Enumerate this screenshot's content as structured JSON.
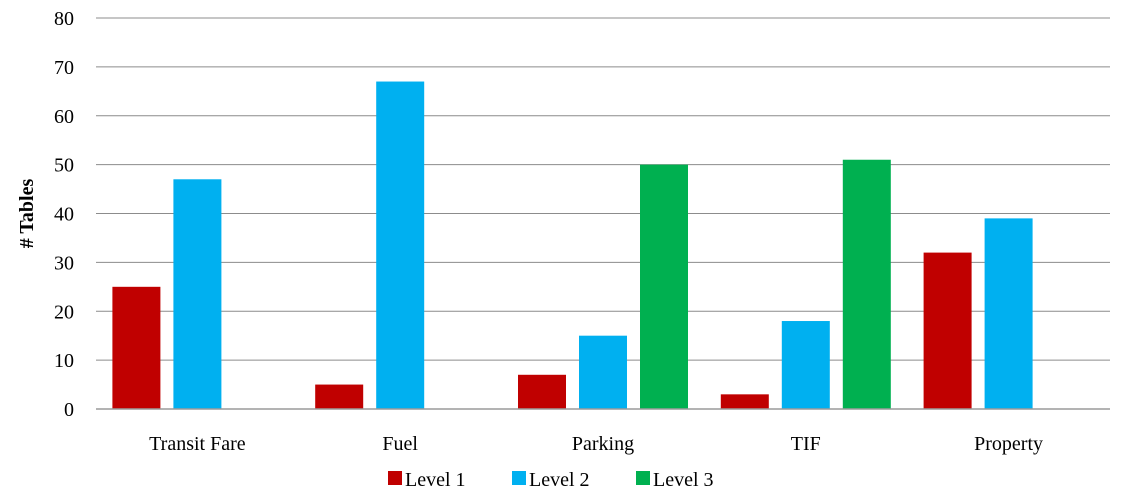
{
  "chart_data": {
    "type": "bar",
    "title": "",
    "xlabel": "",
    "ylabel": "# Tables",
    "ylim": [
      0,
      80
    ],
    "yticks": [
      0,
      10,
      20,
      30,
      40,
      50,
      60,
      70,
      80
    ],
    "grid": true,
    "legend_position": "bottom",
    "categories": [
      "Transit Fare",
      "Fuel",
      "Parking",
      "TIF",
      "Property"
    ],
    "series": [
      {
        "name": "Level 1",
        "color": "#C00000",
        "values": [
          25,
          5,
          7,
          3,
          32
        ]
      },
      {
        "name": "Level 2",
        "color": "#00B0F0",
        "values": [
          47,
          67,
          15,
          18,
          39
        ]
      },
      {
        "name": "Level 3",
        "color": "#00B050",
        "values": [
          null,
          null,
          50,
          51,
          null
        ]
      }
    ]
  }
}
